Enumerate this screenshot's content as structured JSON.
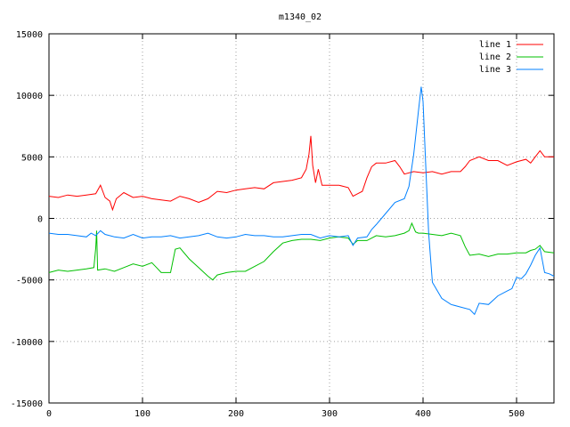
{
  "chart_data": {
    "type": "line",
    "title": "m1340_02",
    "xlabel": "",
    "ylabel": "",
    "xlim": [
      0,
      540
    ],
    "ylim": [
      -15000,
      15000
    ],
    "x_ticks": [
      0,
      100,
      200,
      300,
      400,
      500
    ],
    "y_ticks": [
      -15000,
      -10000,
      -5000,
      0,
      5000,
      10000,
      15000
    ],
    "grid": true,
    "legend_position": "top-right",
    "series": [
      {
        "name": "line 1",
        "color": "#ff0000",
        "points": [
          [
            0,
            1800
          ],
          [
            10,
            1700
          ],
          [
            20,
            1900
          ],
          [
            30,
            1800
          ],
          [
            40,
            1900
          ],
          [
            50,
            2000
          ],
          [
            55,
            2700
          ],
          [
            60,
            1700
          ],
          [
            65,
            1400
          ],
          [
            68,
            700
          ],
          [
            72,
            1600
          ],
          [
            80,
            2100
          ],
          [
            90,
            1700
          ],
          [
            100,
            1800
          ],
          [
            110,
            1600
          ],
          [
            120,
            1500
          ],
          [
            130,
            1400
          ],
          [
            140,
            1800
          ],
          [
            150,
            1600
          ],
          [
            160,
            1300
          ],
          [
            170,
            1600
          ],
          [
            180,
            2200
          ],
          [
            190,
            2100
          ],
          [
            200,
            2300
          ],
          [
            210,
            2400
          ],
          [
            220,
            2500
          ],
          [
            230,
            2400
          ],
          [
            240,
            2900
          ],
          [
            250,
            3000
          ],
          [
            260,
            3100
          ],
          [
            270,
            3300
          ],
          [
            275,
            4000
          ],
          [
            278,
            5200
          ],
          [
            280,
            6700
          ],
          [
            282,
            4300
          ],
          [
            285,
            2900
          ],
          [
            288,
            4000
          ],
          [
            292,
            2700
          ],
          [
            300,
            2700
          ],
          [
            310,
            2700
          ],
          [
            320,
            2500
          ],
          [
            325,
            1800
          ],
          [
            330,
            2000
          ],
          [
            335,
            2200
          ],
          [
            340,
            3300
          ],
          [
            345,
            4200
          ],
          [
            350,
            4500
          ],
          [
            360,
            4500
          ],
          [
            370,
            4700
          ],
          [
            375,
            4200
          ],
          [
            380,
            3600
          ],
          [
            390,
            3800
          ],
          [
            400,
            3700
          ],
          [
            410,
            3800
          ],
          [
            420,
            3600
          ],
          [
            430,
            3800
          ],
          [
            440,
            3800
          ],
          [
            445,
            4200
          ],
          [
            450,
            4700
          ],
          [
            460,
            5000
          ],
          [
            470,
            4700
          ],
          [
            480,
            4700
          ],
          [
            490,
            4300
          ],
          [
            500,
            4600
          ],
          [
            510,
            4800
          ],
          [
            515,
            4500
          ],
          [
            520,
            5000
          ],
          [
            525,
            5500
          ],
          [
            530,
            5000
          ],
          [
            540,
            5000
          ]
        ]
      },
      {
        "name": "line 2",
        "color": "#00c000",
        "points": [
          [
            0,
            -4400
          ],
          [
            10,
            -4200
          ],
          [
            20,
            -4300
          ],
          [
            30,
            -4200
          ],
          [
            40,
            -4100
          ],
          [
            48,
            -4000
          ],
          [
            50,
            -2400
          ],
          [
            51,
            -1000
          ],
          [
            52,
            -4200
          ],
          [
            60,
            -4100
          ],
          [
            70,
            -4300
          ],
          [
            80,
            -4000
          ],
          [
            90,
            -3700
          ],
          [
            100,
            -3900
          ],
          [
            110,
            -3600
          ],
          [
            115,
            -4000
          ],
          [
            120,
            -4400
          ],
          [
            130,
            -4400
          ],
          [
            135,
            -2500
          ],
          [
            140,
            -2400
          ],
          [
            150,
            -3300
          ],
          [
            160,
            -4000
          ],
          [
            170,
            -4700
          ],
          [
            175,
            -5000
          ],
          [
            180,
            -4600
          ],
          [
            190,
            -4400
          ],
          [
            200,
            -4300
          ],
          [
            210,
            -4300
          ],
          [
            220,
            -3900
          ],
          [
            230,
            -3500
          ],
          [
            240,
            -2700
          ],
          [
            250,
            -2000
          ],
          [
            260,
            -1800
          ],
          [
            270,
            -1700
          ],
          [
            280,
            -1700
          ],
          [
            290,
            -1800
          ],
          [
            300,
            -1600
          ],
          [
            310,
            -1500
          ],
          [
            320,
            -1600
          ],
          [
            325,
            -2100
          ],
          [
            330,
            -1800
          ],
          [
            340,
            -1800
          ],
          [
            350,
            -1400
          ],
          [
            360,
            -1500
          ],
          [
            370,
            -1400
          ],
          [
            380,
            -1200
          ],
          [
            385,
            -1000
          ],
          [
            388,
            -400
          ],
          [
            392,
            -1100
          ],
          [
            395,
            -1200
          ],
          [
            400,
            -1200
          ],
          [
            410,
            -1300
          ],
          [
            420,
            -1400
          ],
          [
            430,
            -1200
          ],
          [
            440,
            -1400
          ],
          [
            445,
            -2300
          ],
          [
            450,
            -3000
          ],
          [
            460,
            -2900
          ],
          [
            470,
            -3100
          ],
          [
            480,
            -2900
          ],
          [
            490,
            -2900
          ],
          [
            500,
            -2800
          ],
          [
            510,
            -2800
          ],
          [
            515,
            -2600
          ],
          [
            520,
            -2500
          ],
          [
            525,
            -2200
          ],
          [
            530,
            -2700
          ],
          [
            540,
            -2800
          ]
        ]
      },
      {
        "name": "line 3",
        "color": "#0080ff",
        "points": [
          [
            0,
            -1200
          ],
          [
            10,
            -1300
          ],
          [
            20,
            -1300
          ],
          [
            30,
            -1400
          ],
          [
            40,
            -1500
          ],
          [
            45,
            -1200
          ],
          [
            50,
            -1400
          ],
          [
            55,
            -1000
          ],
          [
            60,
            -1300
          ],
          [
            70,
            -1500
          ],
          [
            80,
            -1600
          ],
          [
            90,
            -1300
          ],
          [
            100,
            -1600
          ],
          [
            110,
            -1500
          ],
          [
            120,
            -1500
          ],
          [
            130,
            -1400
          ],
          [
            140,
            -1600
          ],
          [
            150,
            -1500
          ],
          [
            160,
            -1400
          ],
          [
            170,
            -1200
          ],
          [
            180,
            -1500
          ],
          [
            190,
            -1600
          ],
          [
            200,
            -1500
          ],
          [
            210,
            -1300
          ],
          [
            220,
            -1400
          ],
          [
            230,
            -1400
          ],
          [
            240,
            -1500
          ],
          [
            250,
            -1500
          ],
          [
            260,
            -1400
          ],
          [
            270,
            -1300
          ],
          [
            280,
            -1300
          ],
          [
            290,
            -1600
          ],
          [
            300,
            -1400
          ],
          [
            310,
            -1500
          ],
          [
            320,
            -1400
          ],
          [
            325,
            -2200
          ],
          [
            330,
            -1600
          ],
          [
            340,
            -1500
          ],
          [
            345,
            -900
          ],
          [
            350,
            -500
          ],
          [
            360,
            400
          ],
          [
            370,
            1300
          ],
          [
            380,
            1600
          ],
          [
            385,
            2600
          ],
          [
            390,
            5200
          ],
          [
            395,
            8700
          ],
          [
            398,
            10700
          ],
          [
            400,
            9500
          ],
          [
            403,
            4000
          ],
          [
            406,
            -1200
          ],
          [
            410,
            -5200
          ],
          [
            420,
            -6500
          ],
          [
            430,
            -7000
          ],
          [
            440,
            -7200
          ],
          [
            450,
            -7400
          ],
          [
            455,
            -7800
          ],
          [
            460,
            -6900
          ],
          [
            470,
            -7000
          ],
          [
            480,
            -6300
          ],
          [
            490,
            -5900
          ],
          [
            495,
            -5700
          ],
          [
            500,
            -4800
          ],
          [
            505,
            -4900
          ],
          [
            510,
            -4500
          ],
          [
            515,
            -3800
          ],
          [
            520,
            -3000
          ],
          [
            525,
            -2400
          ],
          [
            530,
            -4400
          ],
          [
            535,
            -4500
          ],
          [
            540,
            -4700
          ]
        ]
      }
    ]
  }
}
